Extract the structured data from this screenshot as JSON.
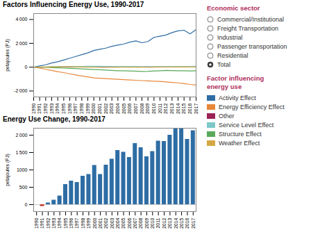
{
  "chart_data": [
    {
      "type": "line",
      "title": "Factors Influencing Energy Use, 1990-2017",
      "y_label": "petajoules (PJ)",
      "x": [
        1990,
        1991,
        1992,
        1993,
        1994,
        1995,
        1996,
        1997,
        1998,
        1999,
        2000,
        2001,
        2002,
        2003,
        2004,
        2005,
        2006,
        2007,
        2008,
        2009,
        2010,
        2011,
        2012,
        2013,
        2014,
        2015,
        2016,
        2017
      ],
      "series": [
        {
          "name": "Activity Effect",
          "color": "#2e6da4",
          "values": [
            0,
            100,
            200,
            350,
            450,
            600,
            750,
            900,
            1050,
            1200,
            1400,
            1500,
            1600,
            1750,
            1850,
            1950,
            2100,
            2200,
            2050,
            2150,
            2500,
            2600,
            2700,
            2900,
            3050,
            3100,
            2800,
            3150
          ]
        },
        {
          "name": "Energy Efficiency Effect",
          "color": "#e8873a",
          "values": [
            0,
            -80,
            -180,
            -280,
            -380,
            -460,
            -560,
            -650,
            -740,
            -820,
            -900,
            -930,
            -960,
            -990,
            -1020,
            -1050,
            -1080,
            -1100,
            -1130,
            -1150,
            -1180,
            -1200,
            -1240,
            -1280,
            -1320,
            -1380,
            -1450,
            -1500
          ]
        },
        {
          "name": "Other",
          "color": "#9b2355",
          "values": [
            0,
            5,
            8,
            10,
            12,
            14,
            16,
            15,
            14,
            13,
            12,
            12,
            13,
            14,
            15,
            16,
            17,
            18,
            17,
            16,
            16,
            18,
            20,
            22,
            25,
            28,
            32,
            35
          ]
        },
        {
          "name": "Service Level Effect",
          "color": "#7ec8c8",
          "values": [
            0,
            10,
            20,
            30,
            40,
            50,
            55,
            60,
            65,
            70,
            75,
            72,
            68,
            65,
            62,
            60,
            58,
            55,
            52,
            50,
            52,
            55,
            58,
            60,
            62,
            65,
            68,
            70
          ]
        },
        {
          "name": "Structure Effect",
          "color": "#5aaa5a",
          "values": [
            0,
            -10,
            -20,
            -40,
            -60,
            -80,
            -100,
            -120,
            -150,
            -170,
            -200,
            -220,
            -250,
            -280,
            -300,
            -310,
            -320,
            -330,
            -360,
            -350,
            -320,
            -300,
            -280,
            -290,
            -300,
            -310,
            -320,
            -310
          ]
        },
        {
          "name": "Weather Effect",
          "color": "#d4a843",
          "values": [
            0,
            5,
            10,
            15,
            20,
            25,
            30,
            20,
            10,
            5,
            0,
            -5,
            -5,
            -5,
            0,
            5,
            5,
            0,
            5,
            -5,
            5,
            10,
            15,
            20,
            20,
            25,
            15,
            10
          ]
        }
      ],
      "xlim": [
        1990,
        2017
      ],
      "xticks": [
        1990,
        1991,
        1992,
        1993,
        1994,
        1995,
        1996,
        1997,
        1998,
        1999,
        2000,
        2001,
        2002,
        2003,
        2004,
        2005,
        2006,
        2007,
        2008,
        2009,
        2010,
        2011,
        2012,
        2013,
        2014,
        2015,
        2016,
        2017
      ],
      "ylim": [
        -2500,
        4500
      ],
      "yticks": [
        {
          "value": -2000,
          "label": "-2 000"
        },
        0,
        {
          "value": 2000,
          "label": "2 000"
        },
        {
          "value": 4000,
          "label": "4 000"
        }
      ],
      "grid": false,
      "legend": "right",
      "legend_title": "Factor influencing\nenergy use",
      "annotations": [
        {
          "title": "Economic sector",
          "items": [
            "Commercial/Institutional",
            "Freight Transportation",
            "Industrial",
            "Passenger transportation",
            "Residential",
            "Total"
          ]
        }
      ]
    },
    {
      "type": "bar",
      "title": "Energy Use Change, 1990-2017",
      "y_label": "petajoules (PJ)",
      "x": [
        1990,
        1991,
        1992,
        1993,
        1994,
        1995,
        1996,
        1997,
        1998,
        1999,
        2000,
        2001,
        2002,
        2003,
        2004,
        2005,
        2006,
        2007,
        2008,
        2009,
        2010,
        2011,
        2012,
        2013,
        2014,
        2015,
        2016,
        2017
      ],
      "values": [
        0,
        -50,
        50,
        130,
        250,
        580,
        680,
        640,
        820,
        870,
        1130,
        870,
        1140,
        1310,
        1560,
        1510,
        1360,
        1760,
        1640,
        1380,
        1530,
        1830,
        1820,
        2000,
        2200,
        2180,
        1880,
        2130
      ],
      "colors": [
        "#2e6da4",
        "#c0392b",
        "#2e6da4",
        "#2e6da4",
        "#2e6da4",
        "#2e6da4",
        "#2e6da4",
        "#2e6da4",
        "#2e6da4",
        "#2e6da4",
        "#2e6da4",
        "#2e6da4",
        "#2e6da4",
        "#2e6da4",
        "#2e6da4",
        "#2e6da4",
        "#2e6da4",
        "#2e6da4",
        "#2e6da4",
        "#2e6da4",
        "#2e6da4",
        "#2e6da4",
        "#2e6da4",
        "#2e6da4",
        "#2e6da4",
        "#2e6da4",
        "#2e6da4",
        "#2e6da4"
      ],
      "xlim": [
        1989.5,
        2017.5
      ],
      "xticks": [
        1990,
        1991,
        1992,
        1993,
        1994,
        1995,
        1996,
        1997,
        1998,
        1999,
        2000,
        2001,
        2002,
        2003,
        2004,
        2005,
        2006,
        2007,
        2008,
        2009,
        2010,
        2011,
        2012,
        2013,
        2014,
        2015,
        2016,
        2017
      ],
      "ylim": [
        -200,
        2200
      ],
      "yticks": [
        0,
        500,
        1000,
        {
          "value": 1500,
          "label": "1 500"
        },
        {
          "value": 2000,
          "label": "2 000"
        }
      ],
      "grid": false
    }
  ]
}
